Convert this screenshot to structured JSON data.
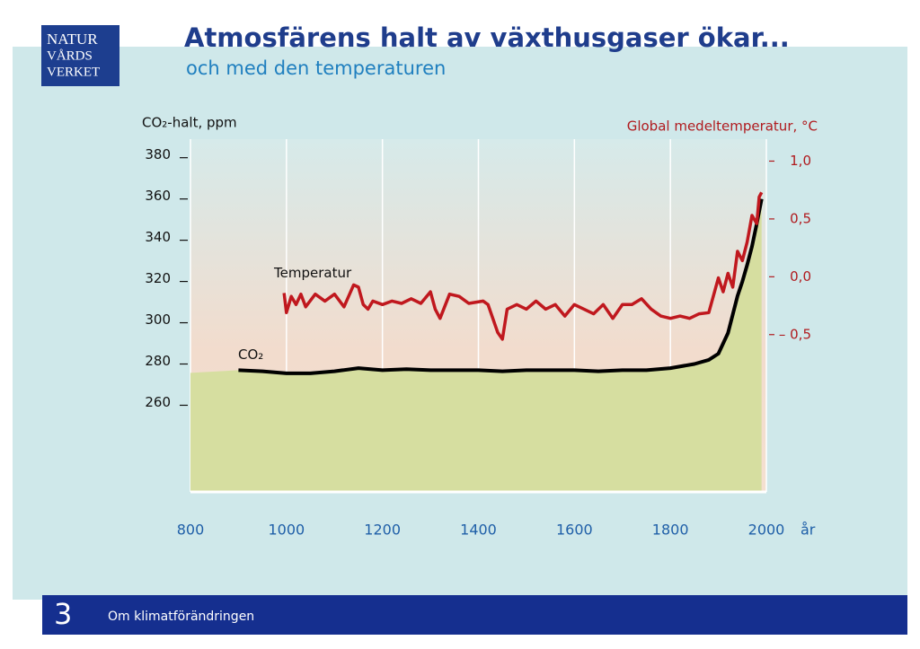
{
  "logo": {
    "lines": [
      "NATUR",
      "VÅRDS",
      "VERKET"
    ]
  },
  "footer": {
    "number": "3",
    "text": "Om klimatförändringen"
  },
  "chart_data": {
    "type": "line",
    "title": "Atmosfärens halt av växthusgaser ökar...",
    "subtitle": "och med den temperaturen",
    "ylabel": "CO₂-halt, ppm",
    "y2label": "Global medeltemperatur, °C",
    "xlabel": "år",
    "xlim": [
      800,
      2000
    ],
    "xticks": [
      800,
      1000,
      1200,
      1400,
      1600,
      1800,
      2000
    ],
    "ylim": [
      218,
      389
    ],
    "yticks": [
      260,
      280,
      300,
      320,
      340,
      360,
      380
    ],
    "y2lim": [
      -1.86,
      1.19
    ],
    "y2ticks": [
      {
        "value": 1.0,
        "label": "1,0"
      },
      {
        "value": 0.5,
        "label": "0,5"
      },
      {
        "value": 0.0,
        "label": "0,0"
      },
      {
        "value": -0.5,
        "label": "– 0,5"
      }
    ],
    "grid": true,
    "series": [
      {
        "name": "CO₂",
        "color": "#000000",
        "x": [
          900,
          950,
          1000,
          1050,
          1100,
          1150,
          1200,
          1250,
          1300,
          1350,
          1400,
          1450,
          1500,
          1550,
          1600,
          1650,
          1700,
          1750,
          1800,
          1850,
          1880,
          1900,
          1920,
          1940,
          1950,
          1960,
          1970,
          1980,
          1990
        ],
        "values": [
          277,
          276.5,
          275.5,
          275.5,
          276.5,
          278,
          277,
          277.5,
          277,
          277,
          277,
          276.5,
          277,
          277,
          277,
          276.5,
          277,
          277,
          278,
          280,
          282,
          285,
          295,
          313,
          320,
          328,
          337,
          348,
          360
        ]
      },
      {
        "name": "Temperatur",
        "color": "#c0181e",
        "axis": "y2",
        "x": [
          995,
          1000,
          1010,
          1020,
          1030,
          1040,
          1060,
          1080,
          1100,
          1120,
          1140,
          1150,
          1160,
          1170,
          1180,
          1200,
          1220,
          1240,
          1260,
          1280,
          1300,
          1310,
          1320,
          1340,
          1360,
          1380,
          1410,
          1420,
          1440,
          1450,
          1460,
          1480,
          1500,
          1520,
          1540,
          1560,
          1580,
          1600,
          1620,
          1640,
          1660,
          1680,
          1700,
          1720,
          1740,
          1760,
          1780,
          1800,
          1820,
          1840,
          1860,
          1880,
          1900,
          1910,
          1920,
          1930,
          1940,
          1950,
          1960,
          1970,
          1980,
          1985,
          1990
        ],
        "values": [
          -0.14,
          -0.31,
          -0.17,
          -0.24,
          -0.15,
          -0.26,
          -0.15,
          -0.21,
          -0.15,
          -0.26,
          -0.07,
          -0.09,
          -0.24,
          -0.28,
          -0.21,
          -0.24,
          -0.21,
          -0.23,
          -0.19,
          -0.23,
          -0.13,
          -0.28,
          -0.36,
          -0.15,
          -0.17,
          -0.23,
          -0.21,
          -0.24,
          -0.48,
          -0.54,
          -0.28,
          -0.24,
          -0.28,
          -0.21,
          -0.28,
          -0.24,
          -0.34,
          -0.24,
          -0.28,
          -0.32,
          -0.24,
          -0.36,
          -0.24,
          -0.24,
          -0.19,
          -0.28,
          -0.34,
          -0.36,
          -0.34,
          -0.36,
          -0.32,
          -0.31,
          -0.01,
          -0.13,
          0.03,
          -0.09,
          0.22,
          0.14,
          0.3,
          0.53,
          0.46,
          0.69,
          0.73
        ]
      }
    ]
  }
}
